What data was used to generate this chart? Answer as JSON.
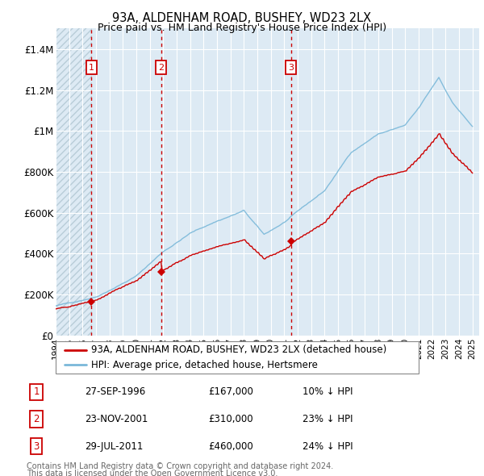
{
  "title1": "93A, ALDENHAM ROAD, BUSHEY, WD23 2LX",
  "title2": "Price paid vs. HM Land Registry's House Price Index (HPI)",
  "hpi_color": "#7ab8d9",
  "price_color": "#cc0000",
  "dashed_color": "#cc0000",
  "bg_color": "#ddeaf4",
  "hatch_color": "#c5d8e8",
  "grid_color": "#ffffff",
  "ylim": [
    0,
    1500000
  ],
  "yticks": [
    0,
    200000,
    400000,
    600000,
    800000,
    1000000,
    1200000,
    1400000
  ],
  "ytick_labels": [
    "£0",
    "£200K",
    "£400K",
    "£600K",
    "£800K",
    "£1M",
    "£1.2M",
    "£1.4M"
  ],
  "x_start_year": 1994,
  "x_end_year": 2025,
  "sale_prices": [
    167000,
    310000,
    460000
  ],
  "sale_labels": [
    "1",
    "2",
    "3"
  ],
  "sale_info": [
    {
      "num": "1",
      "date": "27-SEP-1996",
      "price": "£167,000",
      "pct": "10%",
      "dir": "↓"
    },
    {
      "num": "2",
      "date": "23-NOV-2001",
      "price": "£310,000",
      "pct": "23%",
      "dir": "↓"
    },
    {
      "num": "3",
      "date": "29-JUL-2011",
      "price": "£460,000",
      "pct": "24%",
      "dir": "↓"
    }
  ],
  "legend_line1": "93A, ALDENHAM ROAD, BUSHEY, WD23 2LX (detached house)",
  "legend_line2": "HPI: Average price, detached house, Hertsmere",
  "footer1": "Contains HM Land Registry data © Crown copyright and database right 2024.",
  "footer2": "This data is licensed under the Open Government Licence v3.0."
}
